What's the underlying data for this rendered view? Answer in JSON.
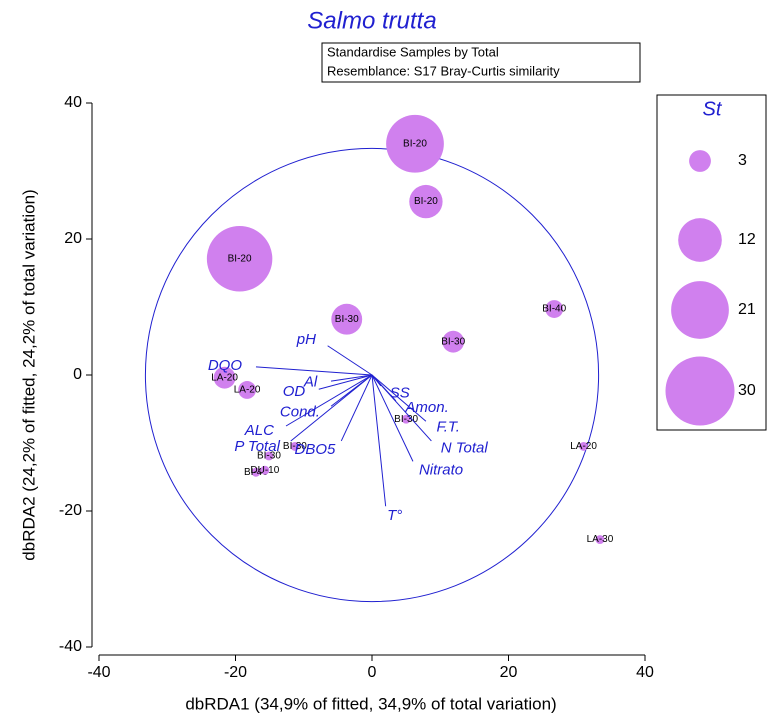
{
  "chart_data": {
    "type": "bubble",
    "title": "Salmo trutta",
    "notes": [
      "Standardise Samples by Total",
      "Resemblance: S17 Bray-Curtis similarity"
    ],
    "x_label": "dbRDA1 (34,9% of fitted, 34,9% of total variation)",
    "y_label": "dbRDA2 (24,2% of fitted, 24,2% of total variation)",
    "xlim": [
      -40,
      40
    ],
    "ylim": [
      -40,
      40
    ],
    "xticks": [
      -40,
      -20,
      0,
      20,
      40
    ],
    "yticks": [
      -40,
      -20,
      0,
      20,
      40
    ],
    "color": "#d080ee",
    "labels": [
      "BI-20",
      "BI-20",
      "BI-20",
      "BI-30",
      "BI-30",
      "BI-40",
      "LA-20",
      "LA-20",
      "BI-30",
      "LA-20",
      "LA-30",
      "BI-40",
      "DU-10",
      "BI-30",
      "BI-30"
    ],
    "x": [
      6.3,
      7.9,
      -19.4,
      -3.7,
      11.9,
      26.7,
      -21.6,
      -18.3,
      5.0,
      31.0,
      33.4,
      -17.0,
      -15.7,
      -15.1,
      -11.3
    ],
    "y": [
      34.0,
      25.5,
      17.1,
      8.2,
      4.9,
      9.7,
      -0.4,
      -2.2,
      -6.5,
      -10.5,
      -24.2,
      -14.3,
      -14.0,
      -11.9,
      -10.5
    ],
    "sizes": [
      21,
      7,
      27,
      6,
      3,
      2,
      3,
      2,
      0.5,
      0.5,
      0.5,
      0.5,
      0.5,
      0.5,
      0.5
    ],
    "size_legend_title": "St",
    "size_legend": [
      3,
      12,
      21,
      30
    ],
    "vector_names": [
      "pH",
      "DQO",
      "Al",
      "OD",
      "Cond.",
      "ALC",
      "P Total",
      "DBO5",
      "T°",
      "Nitrato",
      "N Total",
      "F.T.",
      "Amon.",
      "SS"
    ],
    "vector_x": [
      -6.5,
      -17.0,
      -6.0,
      -7.8,
      -6.0,
      -12.6,
      -11.9,
      -4.5,
      2.0,
      6.0,
      8.7,
      7.9,
      3.5,
      1.3
    ],
    "vector_y": [
      4.3,
      1.2,
      -0.9,
      -2.1,
      -4.6,
      -7.5,
      -9.7,
      -9.7,
      -19.3,
      -12.7,
      -9.7,
      -6.8,
      -3.8,
      -1.6
    ],
    "correlation_circle_radius": 33.2,
    "vector_color": "#2020d0"
  }
}
